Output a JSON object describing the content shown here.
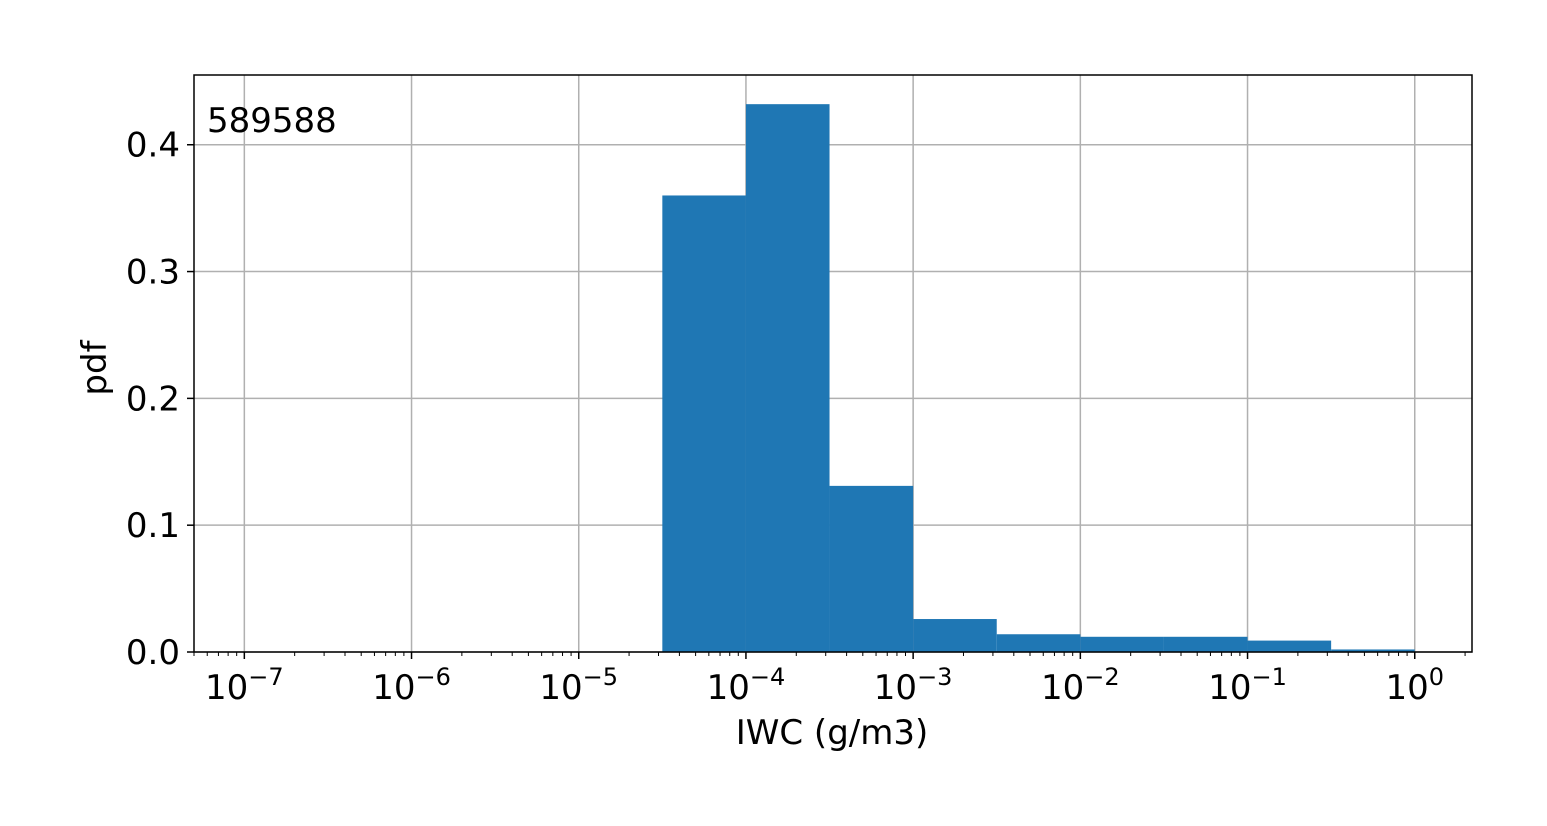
{
  "chart_data": {
    "type": "bar",
    "subtype": "histogram",
    "annotation": "589588",
    "xlabel": "IWC (g/m3)",
    "ylabel": "pdf",
    "xscale": "log",
    "xlim": [
      5e-08,
      2.2
    ],
    "ylim": [
      0,
      0.455
    ],
    "grid": true,
    "bar_color": "#1f77b4",
    "bins": [
      {
        "x0": 3.162e-05,
        "x1": 0.0001,
        "value": 0.36
      },
      {
        "x0": 0.0001,
        "x1": 0.0003162,
        "value": 0.432
      },
      {
        "x0": 0.0003162,
        "x1": 0.001,
        "value": 0.131
      },
      {
        "x0": 0.001,
        "x1": 0.003162,
        "value": 0.026
      },
      {
        "x0": 0.003162,
        "x1": 0.01,
        "value": 0.014
      },
      {
        "x0": 0.01,
        "x1": 0.03162,
        "value": 0.012
      },
      {
        "x0": 0.03162,
        "x1": 0.1,
        "value": 0.012
      },
      {
        "x0": 0.1,
        "x1": 0.3162,
        "value": 0.009
      },
      {
        "x0": 0.3162,
        "x1": 1,
        "value": 0.002
      }
    ],
    "x_ticks": [
      {
        "value": 1e-07,
        "base": "10",
        "exp": "−7"
      },
      {
        "value": 1e-06,
        "base": "10",
        "exp": "−6"
      },
      {
        "value": 1e-05,
        "base": "10",
        "exp": "−5"
      },
      {
        "value": 0.0001,
        "base": "10",
        "exp": "−4"
      },
      {
        "value": 0.001,
        "base": "10",
        "exp": "−3"
      },
      {
        "value": 0.01,
        "base": "10",
        "exp": "−2"
      },
      {
        "value": 0.1,
        "base": "10",
        "exp": "−1"
      },
      {
        "value": 1,
        "base": "10",
        "exp": "0"
      }
    ],
    "y_ticks": [
      {
        "value": 0.0,
        "label": "0.0"
      },
      {
        "value": 0.1,
        "label": "0.1"
      },
      {
        "value": 0.2,
        "label": "0.2"
      },
      {
        "value": 0.3,
        "label": "0.3"
      },
      {
        "value": 0.4,
        "label": "0.4"
      }
    ]
  }
}
